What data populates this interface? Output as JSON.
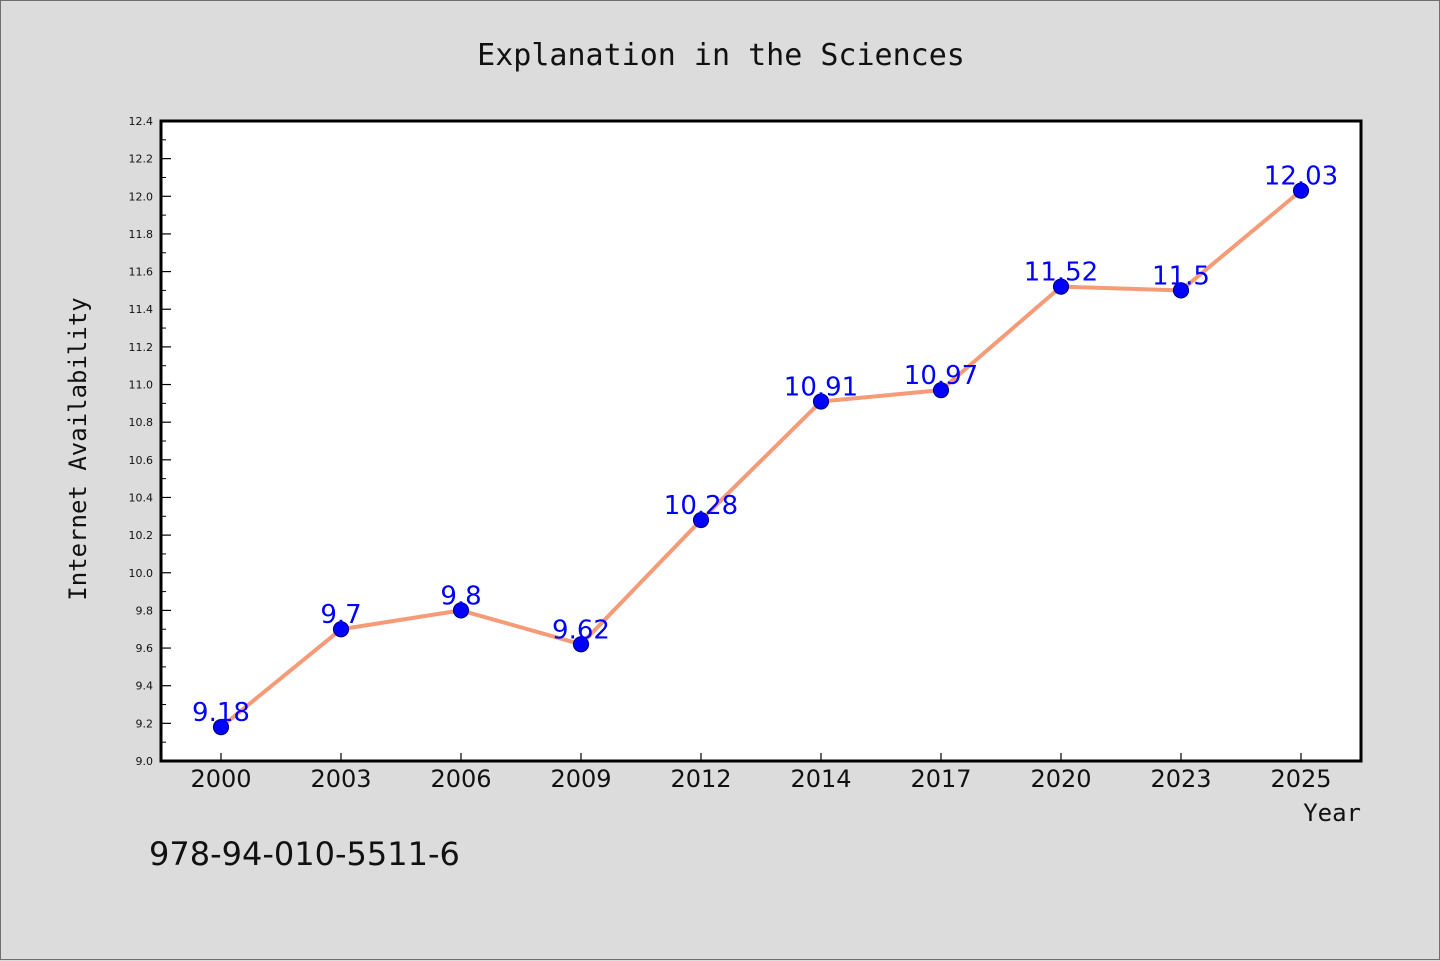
{
  "colors": {
    "background": "#dcdcdc",
    "plot_background": "#ffffff",
    "line": "#f59b78",
    "marker_fill": "#0000ff",
    "marker_edge": "#000080",
    "data_label": "#0000ff"
  },
  "footer": {
    "isbn": "978-94-010-5511-6"
  },
  "chart_data": {
    "type": "line",
    "title": "Explanation in the Sciences",
    "xlabel": "Year",
    "ylabel": "Internet Availability",
    "categories": [
      "2000",
      "2003",
      "2006",
      "2009",
      "2012",
      "2014",
      "2017",
      "2020",
      "2023",
      "2025"
    ],
    "series": [
      {
        "values": [
          9.18,
          9.7,
          9.8,
          9.62,
          10.28,
          10.91,
          10.97,
          11.52,
          11.5,
          12.03
        ],
        "data_labels": [
          "9.18",
          "9.7",
          "9.8",
          "9.62",
          "10.28",
          "10.91",
          "10.97",
          "11.52",
          "11.5",
          "12.03"
        ]
      }
    ],
    "ylim": [
      9.0,
      12.4
    ],
    "yticks": [
      "9.0",
      "9.2",
      "9.4",
      "9.6",
      "9.8",
      "10.0",
      "10.2",
      "10.4",
      "10.6",
      "10.8",
      "11.0",
      "11.2",
      "11.4",
      "11.6",
      "11.8",
      "12.0",
      "12.2",
      "12.4"
    ],
    "grid": false,
    "legend": "none"
  }
}
